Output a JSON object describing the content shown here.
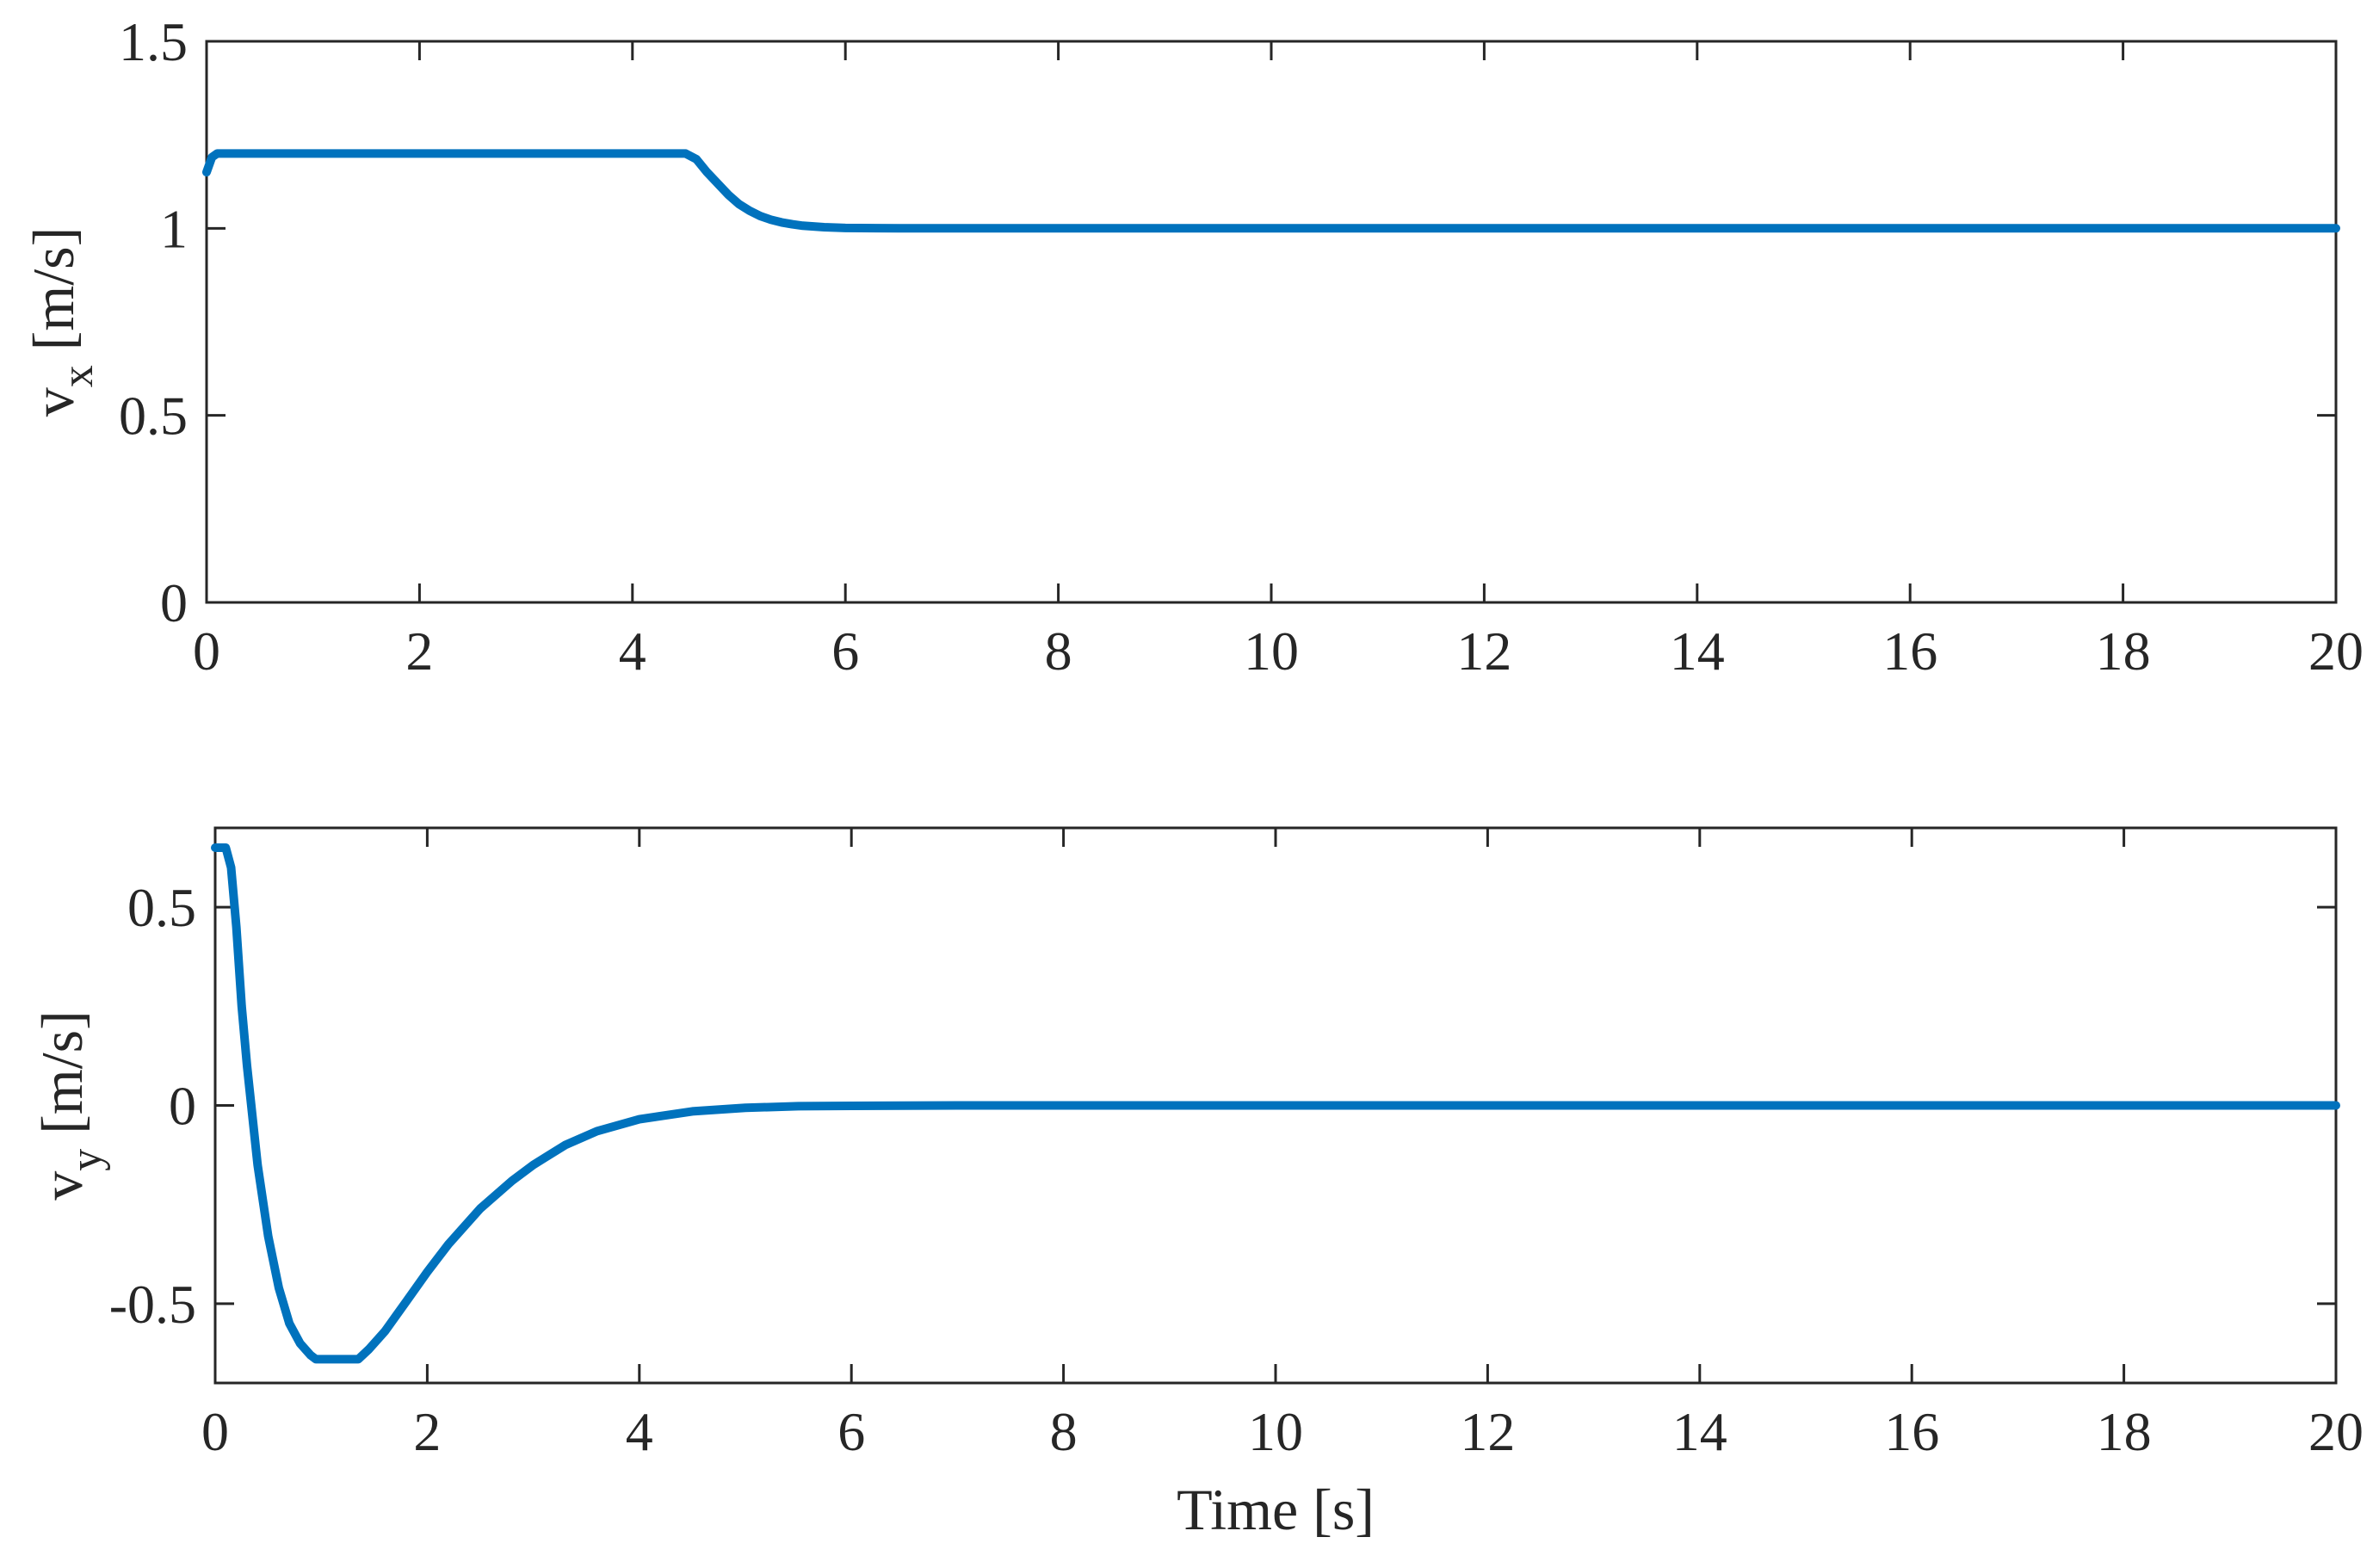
{
  "chart_data": [
    {
      "type": "line",
      "title": "",
      "xlabel": "",
      "ylabel": {
        "main": "v",
        "sub": "x",
        "unit": "[m/s]"
      },
      "xlim": [
        0,
        20
      ],
      "ylim": [
        0,
        1.5
      ],
      "xticks": [
        0,
        2,
        4,
        6,
        8,
        10,
        12,
        14,
        16,
        18,
        20
      ],
      "xtick_labels": [
        "0",
        "2",
        "4",
        "6",
        "8",
        "10",
        "12",
        "14",
        "16",
        "18",
        "20"
      ],
      "yticks": [
        0,
        0.5,
        1,
        1.5
      ],
      "ytick_labels": [
        "0",
        "0.5",
        "1",
        "1.5"
      ],
      "grid": false,
      "color": "#0072BD",
      "series": [
        {
          "x": [
            0,
            0.05,
            0.1,
            1,
            2,
            3,
            4,
            4.5,
            4.6,
            4.7,
            4.8,
            4.9,
            5.0,
            5.1,
            5.2,
            5.3,
            5.4,
            5.5,
            5.6,
            5.8,
            6.0,
            6.5,
            7,
            8,
            10,
            12,
            14,
            16,
            18,
            20
          ],
          "y": [
            1.15,
            1.19,
            1.2,
            1.2,
            1.2,
            1.2,
            1.2,
            1.2,
            1.185,
            1.15,
            1.12,
            1.09,
            1.065,
            1.047,
            1.033,
            1.023,
            1.016,
            1.011,
            1.007,
            1.003,
            1.001,
            1.0,
            1.0,
            1.0,
            1.0,
            1.0,
            1.0,
            1.0,
            1.0,
            1.0
          ]
        }
      ]
    },
    {
      "type": "line",
      "title": "",
      "xlabel": "Time [s]",
      "ylabel": {
        "main": "v",
        "sub": "y",
        "unit": "[m/s]"
      },
      "xlim": [
        0,
        20
      ],
      "ylim": [
        -0.7,
        0.7
      ],
      "xticks": [
        0,
        2,
        4,
        6,
        8,
        10,
        12,
        14,
        16,
        18,
        20
      ],
      "xtick_labels": [
        "0",
        "2",
        "4",
        "6",
        "8",
        "10",
        "12",
        "14",
        "16",
        "18",
        "20"
      ],
      "yticks": [
        -0.5,
        0,
        0.5
      ],
      "ytick_labels": [
        "-0.5",
        "0",
        "0.5"
      ],
      "grid": false,
      "color": "#0072BD",
      "series": [
        {
          "x": [
            0,
            0.1,
            0.15,
            0.2,
            0.25,
            0.3,
            0.4,
            0.5,
            0.6,
            0.7,
            0.8,
            0.9,
            0.95,
            1.0,
            1.2,
            1.35,
            1.45,
            1.6,
            1.8,
            2.0,
            2.2,
            2.5,
            2.8,
            3.0,
            3.3,
            3.6,
            4.0,
            4.5,
            5.0,
            5.5,
            6.0,
            7,
            8,
            10,
            12,
            14,
            16,
            18,
            20
          ],
          "y": [
            0.65,
            0.65,
            0.6,
            0.45,
            0.25,
            0.1,
            -0.15,
            -0.33,
            -0.46,
            -0.55,
            -0.6,
            -0.63,
            -0.64,
            -0.64,
            -0.64,
            -0.64,
            -0.615,
            -0.57,
            -0.495,
            -0.42,
            -0.35,
            -0.26,
            -0.19,
            -0.15,
            -0.1,
            -0.065,
            -0.035,
            -0.015,
            -0.006,
            -0.002,
            -0.001,
            0,
            0,
            0,
            0,
            0,
            0,
            0,
            0
          ]
        }
      ]
    }
  ]
}
